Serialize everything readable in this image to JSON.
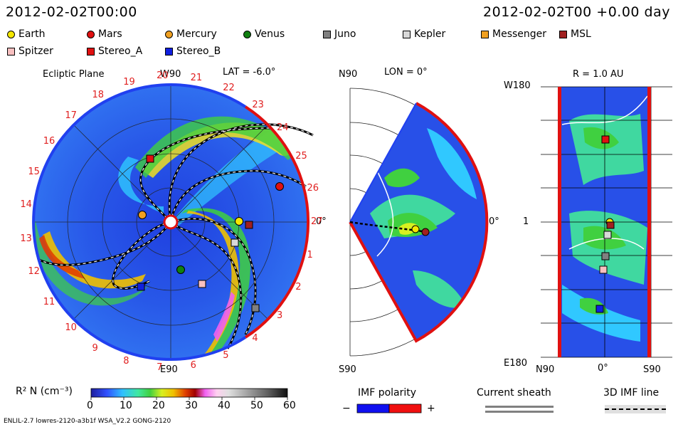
{
  "header": {
    "left_time": "2012-02-02T00:00",
    "right_time": "2012-02-02T00 +0.00 day"
  },
  "legend": [
    {
      "name": "Earth",
      "shape": "circle",
      "color": "#f5e800"
    },
    {
      "name": "Mars",
      "shape": "circle",
      "color": "#e01010"
    },
    {
      "name": "Mercury",
      "shape": "circle",
      "color": "#f0a020"
    },
    {
      "name": "Venus",
      "shape": "circle",
      "color": "#108010"
    },
    {
      "name": "Juno",
      "shape": "square",
      "color": "#808080"
    },
    {
      "name": "Kepler",
      "shape": "square",
      "color": "#d8d8d8"
    },
    {
      "name": "Messenger",
      "shape": "square",
      "color": "#f0a020"
    },
    {
      "name": "MSL",
      "shape": "square",
      "color": "#a02020"
    },
    {
      "name": "Spitzer",
      "shape": "square",
      "color": "#f8c0c0"
    },
    {
      "name": "Stereo_A",
      "shape": "square",
      "color": "#e01010"
    },
    {
      "name": "Stereo_B",
      "shape": "square",
      "color": "#1020e0"
    }
  ],
  "ecliptic": {
    "title": "Ecliptic Plane",
    "top_label": "W90",
    "lat_label": "LAT = -6.0°",
    "bottom_label": "E90",
    "right_label": "0°",
    "carrington": [
      "1",
      "2",
      "3",
      "4",
      "5",
      "6",
      "7",
      "8",
      "9",
      "10",
      "11",
      "12",
      "13",
      "14",
      "15",
      "16",
      "17",
      "18",
      "19",
      "20",
      "21",
      "22",
      "23",
      "24",
      "25",
      "26",
      "27"
    ]
  },
  "meridional": {
    "top_label": "N90",
    "lon_label": "LON = 0°",
    "bottom_label": "S90",
    "right_label": "0°"
  },
  "sphere": {
    "r_label": "R = 1.0 AU",
    "top_label": "W180",
    "mid_label": "1",
    "bottom_label": "E180",
    "x_left": "N90",
    "x_mid": "0°",
    "x_right": "S90"
  },
  "colorbar": {
    "label": "R² N (cm⁻³)",
    "ticks": [
      "0",
      "10",
      "20",
      "30",
      "40",
      "50",
      "60"
    ]
  },
  "imf": {
    "title": "IMF polarity",
    "minus": "−",
    "plus": "+"
  },
  "sheath": {
    "title": "Current sheath"
  },
  "imfline": {
    "title": "3D IMF line"
  },
  "footer": {
    "version": "ENLIL-2.7 lowres-2120-a3b1f WSA_V2.2 GONG-2120"
  }
}
